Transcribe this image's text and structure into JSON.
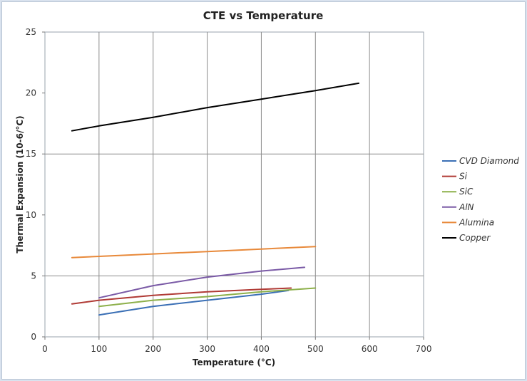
{
  "chart_data": {
    "type": "line",
    "title": "CTE vs Temperature",
    "xlabel": "Temperature (°C)",
    "ylabel": "Thermal Expansion (10-6/°C)",
    "xlim": [
      0,
      700
    ],
    "ylim": [
      0,
      25
    ],
    "x_ticks": [
      0,
      100,
      200,
      300,
      400,
      500,
      600,
      700
    ],
    "y_ticks": [
      0,
      5,
      10,
      15,
      20,
      25
    ],
    "grid": "x major lines and y major lines at 5, 15",
    "legend_position": "right",
    "series": [
      {
        "name": "CVD Diamond",
        "color": "#3a6fb5",
        "x": [
          100,
          200,
          300,
          400,
          450
        ],
        "y": [
          1.8,
          2.5,
          3.0,
          3.5,
          3.8
        ]
      },
      {
        "name": "Si",
        "color": "#b03a35",
        "x": [
          50,
          100,
          200,
          300,
          400,
          455
        ],
        "y": [
          2.7,
          3.0,
          3.4,
          3.7,
          3.9,
          4.0
        ]
      },
      {
        "name": "SiC",
        "color": "#8db04a",
        "x": [
          100,
          200,
          300,
          400,
          500
        ],
        "y": [
          2.5,
          3.0,
          3.3,
          3.7,
          4.0
        ]
      },
      {
        "name": "AlN",
        "color": "#7a5aa6",
        "x": [
          100,
          200,
          300,
          400,
          480
        ],
        "y": [
          3.2,
          4.2,
          4.9,
          5.4,
          5.7
        ]
      },
      {
        "name": "Alumina",
        "color": "#e8893a",
        "x": [
          50,
          100,
          200,
          300,
          400,
          500
        ],
        "y": [
          6.5,
          6.6,
          6.8,
          7.0,
          7.2,
          7.4
        ]
      },
      {
        "name": "Copper",
        "color": "#000000",
        "x": [
          50,
          100,
          200,
          300,
          400,
          500,
          580
        ],
        "y": [
          16.9,
          17.3,
          18.0,
          18.8,
          19.5,
          20.2,
          20.8
        ]
      }
    ]
  }
}
